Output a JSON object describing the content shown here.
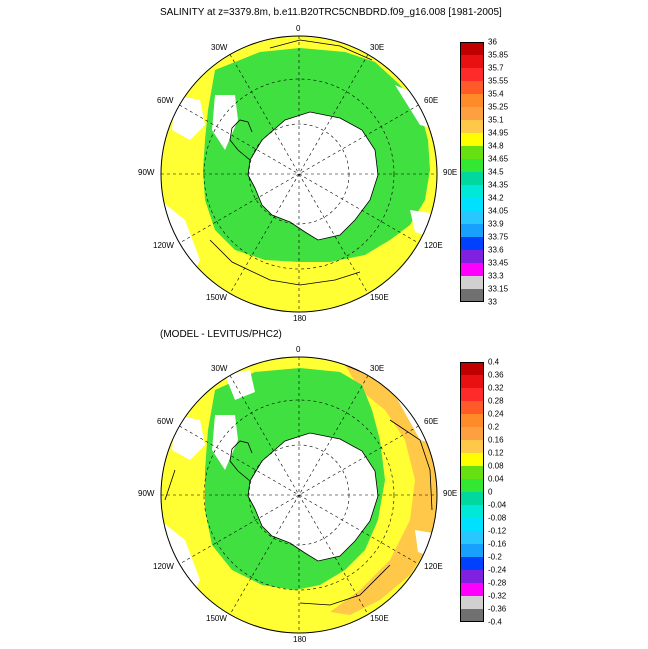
{
  "titles": {
    "top": "SALINITY at z=3379.8m, b.e11.B20TRC5CNBDRD.f09_g16.008 [1981-2005]",
    "bottom": "(MODEL - LEVITUS/PHC2)"
  },
  "longitude_labels": {
    "top": [
      "0",
      "30E",
      "60E",
      "90E",
      "120E",
      "150E",
      "180",
      "150W",
      "120W",
      "90W",
      "60W",
      "30W"
    ],
    "bottom": [
      "0",
      "30E",
      "60E",
      "90E",
      "120E",
      "150E",
      "180",
      "150W",
      "120W",
      "90W",
      "60W",
      "30W"
    ]
  },
  "colorbars": {
    "top": {
      "labels": [
        "36",
        "35.85",
        "35.7",
        "35.55",
        "35.4",
        "35.25",
        "35.1",
        "34.95",
        "34.8",
        "34.65",
        "34.5",
        "34.35",
        "34.2",
        "34.05",
        "33.9",
        "33.75",
        "33.6",
        "33.45",
        "33.3",
        "33.15",
        "33"
      ],
      "colors": [
        "#c00000",
        "#e81010",
        "#ff2a2a",
        "#ff5a28",
        "#ff8a28",
        "#ffa040",
        "#ffc848",
        "#ffff00",
        "#66e010",
        "#33e833",
        "#00d8a0",
        "#00e8d8",
        "#00e0ff",
        "#28c8ff",
        "#18a0ff",
        "#0040ff",
        "#8020e0",
        "#ff00ff",
        "#d0d0d0",
        "#707070"
      ]
    },
    "bottom": {
      "labels": [
        "0.4",
        "0.36",
        "0.32",
        "0.28",
        "0.24",
        "0.2",
        "0.16",
        "0.12",
        "0.08",
        "0.04",
        "0",
        "-0.04",
        "-0.08",
        "-0.12",
        "-0.16",
        "-0.2",
        "-0.24",
        "-0.28",
        "-0.32",
        "-0.36",
        "-0.4"
      ],
      "colors": [
        "#c00000",
        "#e81010",
        "#ff2a2a",
        "#ff5a28",
        "#ff8a28",
        "#ffa040",
        "#ffc848",
        "#ffff00",
        "#66e010",
        "#33e833",
        "#00d8a0",
        "#00e8d8",
        "#00e0ff",
        "#28c8ff",
        "#18a0ff",
        "#0040ff",
        "#8020e0",
        "#ff00ff",
        "#d0d0d0",
        "#707070"
      ]
    }
  },
  "colors": {
    "yellow": "#ffff33",
    "green": "#3fe03f",
    "orange": "#ffc848",
    "land": "#ffffff"
  }
}
